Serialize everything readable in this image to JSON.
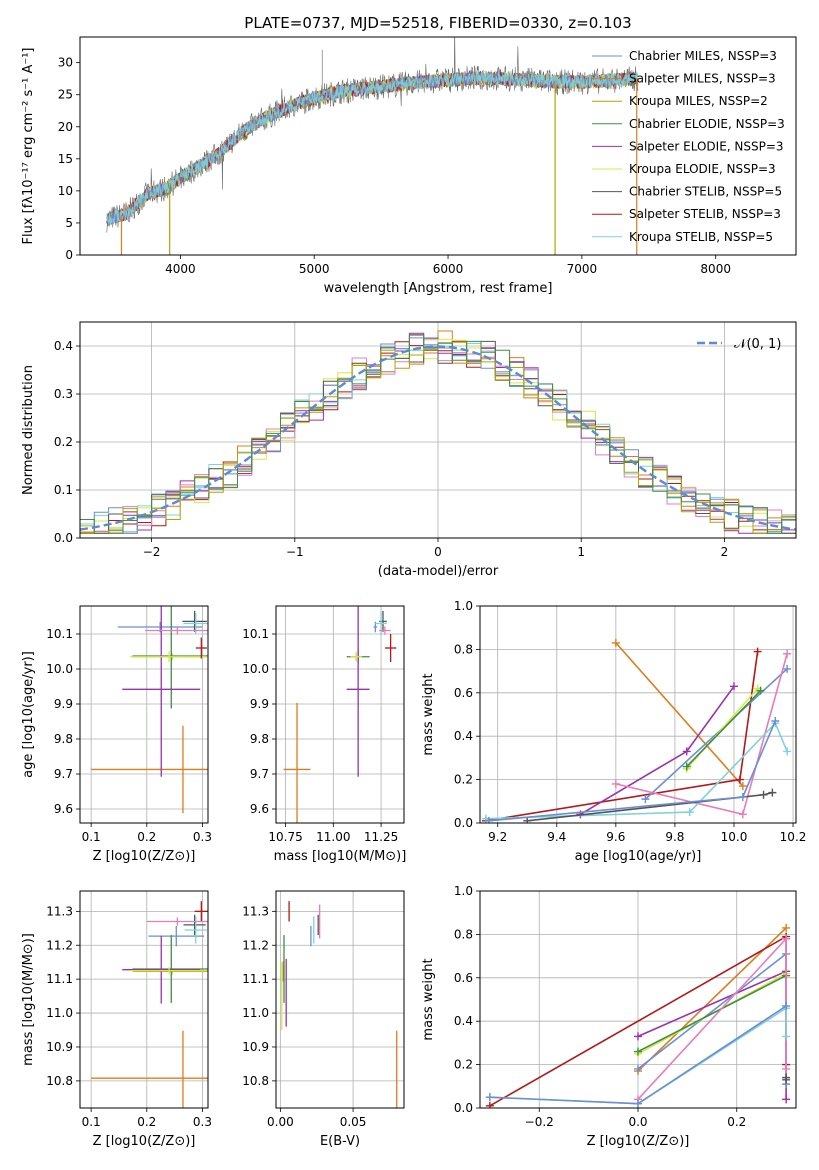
{
  "figure": {
    "title": "PLATE=0737, MJD=52518, FIBERID=0330, z=0.103"
  },
  "colors": {
    "c1": "#6a8fd6",
    "c2": "#e07b1a",
    "c3": "#b5a400",
    "c4": "#3f8f3f",
    "c5": "#9b30b0",
    "c6": "#d4e84a",
    "c7": "#555555",
    "c8": "#b51818",
    "c9": "#7dd3d8",
    "c10": "#e87cb8",
    "normal": "#5b8ad6"
  },
  "chart_data": [
    {
      "id": "spectrum",
      "type": "line",
      "xlabel": "wavelength [Angstrom, rest frame]",
      "ylabel": "Flux [fλ10⁻¹⁷ erg cm⁻² s⁻¹ A⁻¹]",
      "xlim": [
        3250,
        8600
      ],
      "ylim": [
        0,
        34
      ],
      "xticks": [
        "4000",
        "5000",
        "6000",
        "7000",
        "8000"
      ],
      "yticks": [
        "0",
        "5",
        "10",
        "15",
        "20",
        "25",
        "30"
      ],
      "legend": [
        "Chabrier MILES, NSSP=3",
        "Salpeter MILES, NSSP=3",
        "Kroupa MILES, NSSP=2",
        "Chabrier ELODIE, NSSP=3",
        "Salpeter ELODIE, NSSP=3",
        "Kroupa ELODIE, NSSP=3",
        "Chabrier STELIB, NSSP=5",
        "Salpeter STELIB, NSSP=3",
        "Kroupa STELIB, NSSP=5"
      ],
      "continuum": {
        "x": [
          3450,
          3600,
          3750,
          3900,
          4000,
          4150,
          4300,
          4450,
          4600,
          4800,
          5000,
          5200,
          5400,
          5600,
          5800,
          6000,
          6200,
          6400,
          6600,
          6800,
          7000,
          7200,
          7400
        ],
        "y": [
          5.5,
          6.5,
          9.5,
          10.5,
          12,
          14,
          16,
          19,
          21,
          23,
          24.5,
          25.5,
          26,
          26.5,
          27,
          27.3,
          27.6,
          27.5,
          27.3,
          27,
          27,
          27.2,
          27.5
        ]
      }
    },
    {
      "id": "residuals",
      "type": "histogram",
      "xlabel": "(data-model)/error",
      "ylabel": "Normed distribution",
      "xlim": [
        -2.5,
        2.5
      ],
      "ylim": [
        0,
        0.45
      ],
      "xticks": [
        "−2",
        "−1",
        "0",
        "1",
        "2"
      ],
      "yticks": [
        "0.0",
        "0.1",
        "0.2",
        "0.3",
        "0.4"
      ],
      "legend": [
        "𝒩(0, 1)"
      ]
    },
    {
      "id": "age-vs-z",
      "type": "scatter",
      "xlabel": "Z [log10(Z/Z⊙)]",
      "ylabel": "age [log10(age/yr)]",
      "xlim": [
        0.08,
        0.31
      ],
      "ylim": [
        9.56,
        10.18
      ],
      "xticks": [
        "0.1",
        "0.2",
        "0.3"
      ],
      "yticks": [
        "9.6",
        "9.7",
        "9.8",
        "9.9",
        "10.0",
        "10.1"
      ],
      "points": [
        {
          "x": 0.224,
          "y": 10.12,
          "xerr": 0.076,
          "yerr": 0.015,
          "c": "c1"
        },
        {
          "x": 0.265,
          "y": 9.713,
          "xerr": 0.165,
          "yerr": 0.125,
          "c": "c2"
        },
        {
          "x": 0.245,
          "y": 10.035,
          "xerr": 0.07,
          "yerr": 0.01,
          "c": "c3"
        },
        {
          "x": 0.244,
          "y": 10.037,
          "xerr": 0.07,
          "yerr": 0.15,
          "c": "c4"
        },
        {
          "x": 0.226,
          "y": 9.942,
          "xerr": 0.07,
          "yerr": 0.25,
          "c": "c5"
        },
        {
          "x": 0.24,
          "y": 10.035,
          "xerr": 0.07,
          "yerr": 0.015,
          "c": "c6"
        },
        {
          "x": 0.286,
          "y": 10.136,
          "xerr": 0.022,
          "yerr": 0.03,
          "c": "c7"
        },
        {
          "x": 0.298,
          "y": 10.06,
          "xerr": 0.01,
          "yerr": 0.03,
          "c": "c8"
        },
        {
          "x": 0.288,
          "y": 10.13,
          "xerr": 0.022,
          "yerr": 0.03,
          "c": "c9"
        },
        {
          "x": 0.255,
          "y": 10.11,
          "xerr": 0.058,
          "yerr": 0.012,
          "c": "c10"
        }
      ]
    },
    {
      "id": "age-vs-mass",
      "type": "scatter",
      "xlabel": "mass [log10(M/M⊙)]",
      "ylabel": "",
      "xlim": [
        10.7,
        11.37
      ],
      "ylim": [
        9.56,
        10.18
      ],
      "xticks": [
        "10.75",
        "11.00",
        "11.25"
      ],
      "yticks": [
        "9.6",
        "9.7",
        "9.8",
        "9.9",
        "10.0",
        "10.1"
      ],
      "points": [
        {
          "x": 11.22,
          "y": 10.12,
          "xerr": 0.01,
          "yerr": 0.015,
          "c": "c1"
        },
        {
          "x": 10.81,
          "y": 9.713,
          "xerr": 0.07,
          "yerr": 0.19,
          "c": "c2"
        },
        {
          "x": 11.12,
          "y": 10.035,
          "xerr": 0.02,
          "yerr": 0.01,
          "c": "c3"
        },
        {
          "x": 11.13,
          "y": 10.035,
          "xerr": 0.06,
          "yerr": 0.02,
          "c": "c4"
        },
        {
          "x": 11.13,
          "y": 9.942,
          "xerr": 0.06,
          "yerr": 0.25,
          "c": "c5"
        },
        {
          "x": 11.12,
          "y": 10.035,
          "xerr": 0.03,
          "yerr": 0.015,
          "c": "c6"
        },
        {
          "x": 11.26,
          "y": 10.136,
          "xerr": 0.02,
          "yerr": 0.03,
          "c": "c7"
        },
        {
          "x": 11.3,
          "y": 10.06,
          "xerr": 0.03,
          "yerr": 0.04,
          "c": "c8"
        },
        {
          "x": 11.25,
          "y": 10.13,
          "xerr": 0.03,
          "yerr": 0.035,
          "c": "c9"
        },
        {
          "x": 11.27,
          "y": 10.11,
          "xerr": 0.03,
          "yerr": 0.012,
          "c": "c10"
        }
      ]
    },
    {
      "id": "mass-vs-z",
      "type": "scatter",
      "xlabel": "Z [log10(Z/Z⊙)]",
      "ylabel": "mass [log10(M/M⊙)]",
      "xlim": [
        0.08,
        0.31
      ],
      "ylim": [
        10.72,
        11.36
      ],
      "xticks": [
        "0.1",
        "0.2",
        "0.3"
      ],
      "yticks": [
        "10.8",
        "10.9",
        "11.0",
        "11.1",
        "11.2",
        "11.3"
      ],
      "points": [
        {
          "x": 0.253,
          "y": 11.227,
          "xerr": 0.05,
          "yerr": 0.03,
          "c": "c1"
        },
        {
          "x": 0.265,
          "y": 10.808,
          "xerr": 0.165,
          "yerr": 0.14,
          "c": "c2"
        },
        {
          "x": 0.245,
          "y": 11.123,
          "xerr": 0.07,
          "yerr": 0.01,
          "c": "c3"
        },
        {
          "x": 0.244,
          "y": 11.13,
          "xerr": 0.07,
          "yerr": 0.1,
          "c": "c4"
        },
        {
          "x": 0.226,
          "y": 11.128,
          "xerr": 0.07,
          "yerr": 0.1,
          "c": "c5"
        },
        {
          "x": 0.24,
          "y": 11.125,
          "xerr": 0.07,
          "yerr": 0.01,
          "c": "c6"
        },
        {
          "x": 0.286,
          "y": 11.26,
          "xerr": 0.02,
          "yerr": 0.03,
          "c": "c7"
        },
        {
          "x": 0.298,
          "y": 11.3,
          "xerr": 0.012,
          "yerr": 0.03,
          "c": "c8"
        },
        {
          "x": 0.288,
          "y": 11.245,
          "xerr": 0.02,
          "yerr": 0.04,
          "c": "c9"
        },
        {
          "x": 0.255,
          "y": 11.27,
          "xerr": 0.055,
          "yerr": 0.012,
          "c": "c10"
        }
      ]
    },
    {
      "id": "mass-vs-ebv",
      "type": "scatter",
      "xlabel": "E(B-V)",
      "ylabel": "",
      "xlim": [
        -0.003,
        0.085
      ],
      "ylim": [
        10.72,
        11.36
      ],
      "xticks": [
        "0.00",
        "0.05"
      ],
      "yticks": [
        "10.8",
        "10.9",
        "11.0",
        "11.1",
        "11.2",
        "11.3"
      ],
      "points": [
        {
          "x": 0.021,
          "y": 11.227,
          "xerr": 0.0,
          "yerr": 0.03,
          "c": "c1"
        },
        {
          "x": 0.08,
          "y": 10.808,
          "xerr": 0.0,
          "yerr": 0.14,
          "c": "c2"
        },
        {
          "x": 0.002,
          "y": 11.123,
          "xerr": 0.0,
          "yerr": 0.03,
          "c": "c3"
        },
        {
          "x": 0.0025,
          "y": 11.13,
          "xerr": 0.0,
          "yerr": 0.1,
          "c": "c4"
        },
        {
          "x": 0.004,
          "y": 11.06,
          "xerr": 0.0,
          "yerr": 0.1,
          "c": "c5"
        },
        {
          "x": 0.001,
          "y": 11.05,
          "xerr": 0.0,
          "yerr": 0.1,
          "c": "c6"
        },
        {
          "x": 0.026,
          "y": 11.26,
          "xerr": 0.0,
          "yerr": 0.03,
          "c": "c7"
        },
        {
          "x": 0.006,
          "y": 11.3,
          "xerr": 0.0,
          "yerr": 0.03,
          "c": "c8"
        },
        {
          "x": 0.023,
          "y": 11.245,
          "xerr": 0.0,
          "yerr": 0.04,
          "c": "c9"
        },
        {
          "x": 0.027,
          "y": 11.27,
          "xerr": 0.0,
          "yerr": 0.05,
          "c": "c10"
        }
      ]
    },
    {
      "id": "weight-vs-age",
      "type": "line",
      "xlabel": "age [log10(age/yr)]",
      "ylabel": "mass weight",
      "xlim": [
        9.14,
        10.21
      ],
      "ylim": [
        0,
        1.0
      ],
      "xticks": [
        "9.2",
        "9.4",
        "9.6",
        "9.8",
        "10.0",
        "10.2"
      ],
      "yticks": [
        "0.0",
        "0.2",
        "0.4",
        "0.6",
        "0.8",
        "1.0"
      ],
      "series": [
        {
          "c": "c2",
          "x": [
            9.6,
            10.03
          ],
          "y": [
            0.83,
            0.17
          ]
        },
        {
          "c": "c8",
          "x": [
            9.16,
            10.02,
            10.08
          ],
          "y": [
            0.01,
            0.2,
            0.79
          ]
        },
        {
          "c": "c5",
          "x": [
            9.48,
            9.84,
            10.0
          ],
          "y": [
            0.04,
            0.33,
            0.63
          ]
        },
        {
          "c": "c1",
          "x": [
            9.7,
            10.18
          ],
          "y": [
            0.11,
            0.71
          ]
        },
        {
          "c": "c6",
          "x": [
            9.84,
            10.08
          ],
          "y": [
            0.25,
            0.62
          ]
        },
        {
          "c": "c4",
          "x": [
            9.84,
            10.09
          ],
          "y": [
            0.26,
            0.61
          ]
        },
        {
          "c": "c10",
          "x": [
            9.6,
            10.03,
            10.18
          ],
          "y": [
            0.18,
            0.04,
            0.78
          ]
        },
        {
          "c": "c9",
          "x": [
            9.16,
            9.85,
            10.14,
            10.18
          ],
          "y": [
            0.02,
            0.05,
            0.46,
            0.33
          ]
        },
        {
          "c": "c7",
          "x": [
            9.3,
            10.1,
            10.13
          ],
          "y": [
            0.01,
            0.13,
            0.14
          ]
        },
        {
          "c": "c1",
          "x": [
            9.17,
            10.03,
            10.14
          ],
          "y": [
            0.01,
            0.12,
            0.47
          ]
        }
      ]
    },
    {
      "id": "weight-vs-z",
      "type": "line",
      "xlabel": "Z [log10(Z/Z⊙)]",
      "ylabel": "mass weight",
      "xlim": [
        -0.32,
        0.32
      ],
      "ylim": [
        0,
        1.0
      ],
      "xticks": [
        "−0.2",
        "0.0",
        "0.2"
      ],
      "yticks": [
        "0.0",
        "0.2",
        "0.4",
        "0.6",
        "0.8",
        "1.0"
      ],
      "series": [
        {
          "c": "c2",
          "x": [
            0.0,
            0.3
          ],
          "y": [
            0.17,
            0.83
          ]
        },
        {
          "c": "c8",
          "x": [
            -0.3,
            0.3,
            0.3
          ],
          "y": [
            0.01,
            0.79,
            0.2
          ]
        },
        {
          "c": "c5",
          "x": [
            0.0,
            0.3,
            0.3
          ],
          "y": [
            0.33,
            0.63,
            0.04
          ]
        },
        {
          "c": "c1",
          "x": [
            0.0,
            0.3,
            0.3
          ],
          "y": [
            0.18,
            0.71,
            0.11
          ]
        },
        {
          "c": "c6",
          "x": [
            0.0,
            0.3
          ],
          "y": [
            0.25,
            0.62
          ]
        },
        {
          "c": "c4",
          "x": [
            0.0,
            0.3
          ],
          "y": [
            0.26,
            0.61
          ]
        },
        {
          "c": "c10",
          "x": [
            0.0,
            0.3,
            0.3
          ],
          "y": [
            0.04,
            0.78,
            0.18
          ]
        },
        {
          "c": "c9",
          "x": [
            -0.3,
            0.0,
            0.3,
            0.3
          ],
          "y": [
            0.05,
            0.02,
            0.46,
            0.33
          ]
        },
        {
          "c": "c7",
          "x": [
            0.3,
            0.3
          ],
          "y": [
            0.14,
            0.13
          ]
        },
        {
          "c": "c1",
          "x": [
            -0.3,
            0.0,
            0.3
          ],
          "y": [
            0.05,
            0.02,
            0.47
          ]
        }
      ]
    }
  ]
}
